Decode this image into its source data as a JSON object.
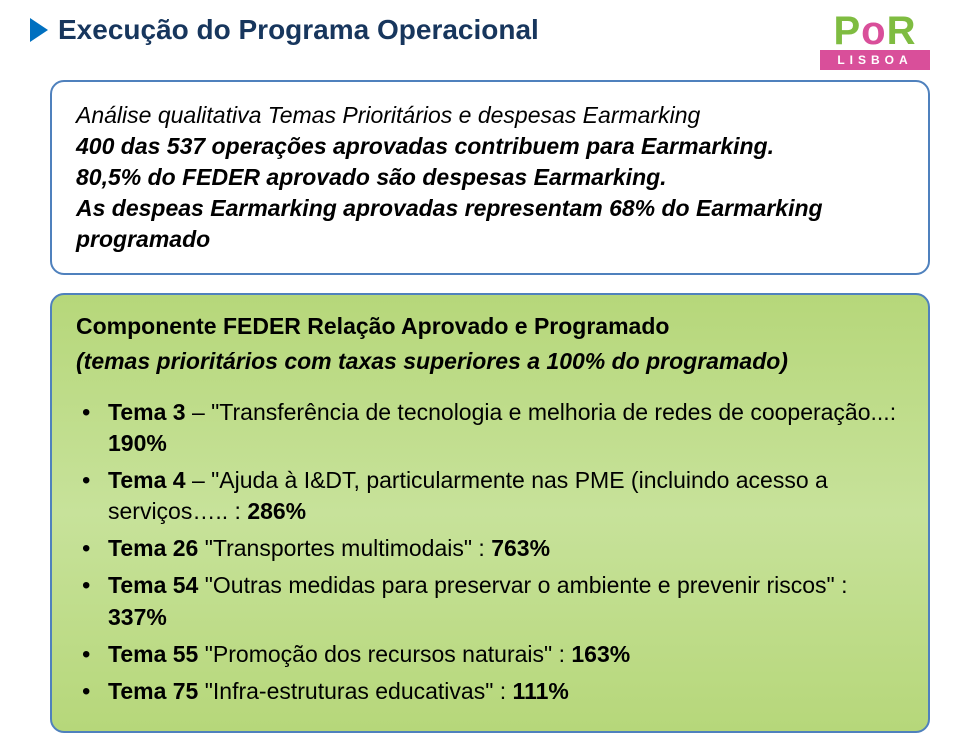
{
  "colors": {
    "arrow": "#0070c0",
    "title": "#17365d",
    "box_border": "#4f81bd",
    "main_box_bg": "#bfdc8a",
    "logo_p": "#7fbc41",
    "logo_o": "#d94f9a",
    "logo_r": "#7fbc41",
    "logo_bar": "#d94f9a"
  },
  "header": {
    "title": "Execução do Programa Operacional",
    "logo_text_top": "PoR",
    "logo_text_bottom": "LISBOA"
  },
  "intro": {
    "line1": "Análise qualitativa Temas Prioritários e despesas Earmarking",
    "line2": "400 das 537 operações aprovadas contribuem para Earmarking.",
    "line3": "80,5% do FEDER aprovado são despesas Earmarking.",
    "line4": "As despeas Earmarking aprovadas representam 68% do Earmarking programado"
  },
  "main": {
    "heading": "Componente FEDER Relação Aprovado e Programado",
    "subheading": "(temas prioritários com taxas superiores a 100% do programado)",
    "items": [
      {
        "label": "Tema 3",
        "text": " – \"Transferência de tecnologia e melhoria de redes de cooperação...: ",
        "value": "190%"
      },
      {
        "label": "Tema 4",
        "text": " – \"Ajuda à I&DT, particularmente nas PME (incluindo acesso a serviços….. : ",
        "value": "286%"
      },
      {
        "label": "Tema 26",
        "text": " \"Transportes multimodais\" : ",
        "value": "763%"
      },
      {
        "label": "Tema 54",
        "text": " \"Outras medidas para preservar o ambiente e prevenir riscos\" : ",
        "value": "337%"
      },
      {
        "label": "Tema 55",
        "text": " \"Promoção dos recursos naturais\" : ",
        "value": "163%"
      },
      {
        "label": "Tema 75",
        "text": " \"Infra-estruturas educativas\" : ",
        "value": "111%"
      }
    ]
  }
}
